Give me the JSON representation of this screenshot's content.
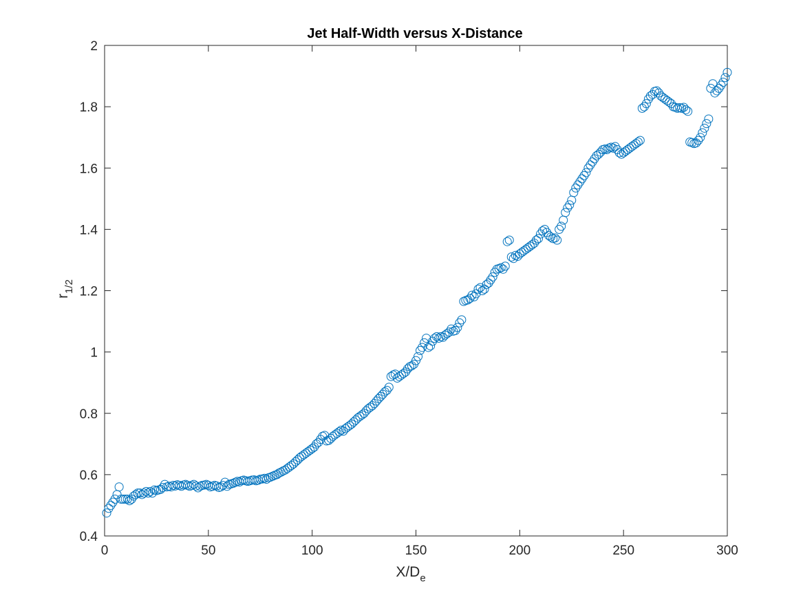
{
  "chart_data": {
    "type": "scatter",
    "title": "Jet Half-Width versus X-Distance",
    "xlabel": {
      "main": "X/D",
      "subscript": "e"
    },
    "ylabel": {
      "main": "r",
      "subscript": "1/2"
    },
    "xlim": [
      0,
      300
    ],
    "ylim": [
      0.4,
      2
    ],
    "x_ticks": [
      0,
      50,
      100,
      150,
      200,
      250,
      300
    ],
    "x_tick_labels": [
      "0",
      "50",
      "100",
      "150",
      "200",
      "250",
      "300"
    ],
    "y_ticks": [
      0.4,
      0.6,
      0.8,
      1.0,
      1.2,
      1.4,
      1.6,
      1.8,
      2.0
    ],
    "y_tick_labels": [
      "0.4",
      "0.6",
      "0.8",
      "1",
      "1.2",
      "1.4",
      "1.6",
      "1.8",
      "2"
    ],
    "grid": false,
    "marker": "circle",
    "marker_color": "#0072BD",
    "series": [
      {
        "points": [
          [
            1,
            0.475
          ],
          [
            2,
            0.49
          ],
          [
            3,
            0.5
          ],
          [
            4,
            0.51
          ],
          [
            5,
            0.52
          ],
          [
            6,
            0.535
          ],
          [
            7,
            0.56
          ],
          [
            8,
            0.52
          ],
          [
            9,
            0.52
          ],
          [
            10,
            0.52
          ],
          [
            11,
            0.52
          ],
          [
            12,
            0.515
          ],
          [
            13,
            0.52
          ],
          [
            14,
            0.53
          ],
          [
            15,
            0.535
          ],
          [
            16,
            0.54
          ],
          [
            17,
            0.54
          ],
          [
            18,
            0.535
          ],
          [
            19,
            0.54
          ],
          [
            20,
            0.545
          ],
          [
            21,
            0.54
          ],
          [
            22,
            0.545
          ],
          [
            23,
            0.54
          ],
          [
            24,
            0.55
          ],
          [
            25,
            0.548
          ],
          [
            26,
            0.55
          ],
          [
            27,
            0.552
          ],
          [
            28,
            0.558
          ],
          [
            29,
            0.568
          ],
          [
            30,
            0.56
          ],
          [
            31,
            0.562
          ],
          [
            32,
            0.56
          ],
          [
            33,
            0.565
          ],
          [
            34,
            0.563
          ],
          [
            35,
            0.567
          ],
          [
            36,
            0.565
          ],
          [
            37,
            0.562
          ],
          [
            38,
            0.566
          ],
          [
            39,
            0.568
          ],
          [
            40,
            0.565
          ],
          [
            41,
            0.562
          ],
          [
            42,
            0.565
          ],
          [
            43,
            0.568
          ],
          [
            44,
            0.563
          ],
          [
            45,
            0.557
          ],
          [
            46,
            0.562
          ],
          [
            47,
            0.565
          ],
          [
            48,
            0.566
          ],
          [
            49,
            0.568
          ],
          [
            50,
            0.565
          ],
          [
            51,
            0.56
          ],
          [
            52,
            0.562
          ],
          [
            53,
            0.565
          ],
          [
            54,
            0.563
          ],
          [
            55,
            0.558
          ],
          [
            56,
            0.56
          ],
          [
            57,
            0.565
          ],
          [
            58,
            0.575
          ],
          [
            59,
            0.562
          ],
          [
            60,
            0.568
          ],
          [
            61,
            0.57
          ],
          [
            62,
            0.572
          ],
          [
            63,
            0.575
          ],
          [
            64,
            0.578
          ],
          [
            65,
            0.576
          ],
          [
            66,
            0.58
          ],
          [
            67,
            0.582
          ],
          [
            68,
            0.58
          ],
          [
            69,
            0.578
          ],
          [
            70,
            0.58
          ],
          [
            71,
            0.582
          ],
          [
            72,
            0.583
          ],
          [
            73,
            0.58
          ],
          [
            74,
            0.582
          ],
          [
            75,
            0.585
          ],
          [
            76,
            0.586
          ],
          [
            77,
            0.588
          ],
          [
            78,
            0.585
          ],
          [
            79,
            0.59
          ],
          [
            80,
            0.592
          ],
          [
            81,
            0.595
          ],
          [
            82,
            0.598
          ],
          [
            83,
            0.6
          ],
          [
            84,
            0.605
          ],
          [
            85,
            0.608
          ],
          [
            86,
            0.612
          ],
          [
            87,
            0.615
          ],
          [
            88,
            0.62
          ],
          [
            89,
            0.625
          ],
          [
            90,
            0.63
          ],
          [
            91,
            0.635
          ],
          [
            92,
            0.642
          ],
          [
            93,
            0.648
          ],
          [
            94,
            0.655
          ],
          [
            95,
            0.66
          ],
          [
            96,
            0.665
          ],
          [
            97,
            0.67
          ],
          [
            98,
            0.675
          ],
          [
            99,
            0.68
          ],
          [
            100,
            0.685
          ],
          [
            101,
            0.69
          ],
          [
            102,
            0.7
          ],
          [
            103,
            0.705
          ],
          [
            104,
            0.715
          ],
          [
            105,
            0.725
          ],
          [
            106,
            0.728
          ],
          [
            107,
            0.71
          ],
          [
            108,
            0.712
          ],
          [
            109,
            0.718
          ],
          [
            110,
            0.725
          ],
          [
            111,
            0.73
          ],
          [
            112,
            0.735
          ],
          [
            113,
            0.74
          ],
          [
            114,
            0.745
          ],
          [
            115,
            0.742
          ],
          [
            116,
            0.75
          ],
          [
            117,
            0.755
          ],
          [
            118,
            0.76
          ],
          [
            119,
            0.765
          ],
          [
            120,
            0.772
          ],
          [
            121,
            0.778
          ],
          [
            122,
            0.785
          ],
          [
            123,
            0.79
          ],
          [
            124,
            0.795
          ],
          [
            125,
            0.8
          ],
          [
            126,
            0.808
          ],
          [
            127,
            0.815
          ],
          [
            128,
            0.82
          ],
          [
            129,
            0.825
          ],
          [
            130,
            0.832
          ],
          [
            131,
            0.84
          ],
          [
            132,
            0.848
          ],
          [
            133,
            0.855
          ],
          [
            134,
            0.862
          ],
          [
            135,
            0.87
          ],
          [
            136,
            0.875
          ],
          [
            137,
            0.885
          ],
          [
            138,
            0.92
          ],
          [
            139,
            0.925
          ],
          [
            140,
            0.928
          ],
          [
            141,
            0.915
          ],
          [
            142,
            0.92
          ],
          [
            143,
            0.925
          ],
          [
            144,
            0.93
          ],
          [
            145,
            0.935
          ],
          [
            146,
            0.945
          ],
          [
            147,
            0.952
          ],
          [
            148,
            0.955
          ],
          [
            149,
            0.96
          ],
          [
            150,
            0.972
          ],
          [
            151,
            0.985
          ],
          [
            152,
            1.005
          ],
          [
            153,
            1.015
          ],
          [
            154,
            1.03
          ],
          [
            155,
            1.045
          ],
          [
            156,
            1.015
          ],
          [
            157,
            1.02
          ],
          [
            158,
            1.035
          ],
          [
            159,
            1.045
          ],
          [
            160,
            1.05
          ],
          [
            161,
            1.045
          ],
          [
            162,
            1.05
          ],
          [
            163,
            1.048
          ],
          [
            164,
            1.055
          ],
          [
            165,
            1.06
          ],
          [
            166,
            1.065
          ],
          [
            167,
            1.075
          ],
          [
            168,
            1.068
          ],
          [
            169,
            1.07
          ],
          [
            170,
            1.08
          ],
          [
            171,
            1.095
          ],
          [
            172,
            1.105
          ],
          [
            173,
            1.165
          ],
          [
            174,
            1.168
          ],
          [
            175,
            1.17
          ],
          [
            176,
            1.175
          ],
          [
            177,
            1.185
          ],
          [
            178,
            1.18
          ],
          [
            179,
            1.19
          ],
          [
            180,
            1.205
          ],
          [
            181,
            1.21
          ],
          [
            182,
            1.2
          ],
          [
            183,
            1.205
          ],
          [
            184,
            1.22
          ],
          [
            185,
            1.225
          ],
          [
            186,
            1.235
          ],
          [
            187,
            1.245
          ],
          [
            188,
            1.26
          ],
          [
            189,
            1.27
          ],
          [
            190,
            1.272
          ],
          [
            191,
            1.275
          ],
          [
            192,
            1.27
          ],
          [
            193,
            1.28
          ],
          [
            194,
            1.36
          ],
          [
            195,
            1.365
          ],
          [
            196,
            1.31
          ],
          [
            197,
            1.305
          ],
          [
            198,
            1.315
          ],
          [
            199,
            1.312
          ],
          [
            200,
            1.32
          ],
          [
            201,
            1.325
          ],
          [
            202,
            1.33
          ],
          [
            203,
            1.335
          ],
          [
            204,
            1.34
          ],
          [
            205,
            1.345
          ],
          [
            206,
            1.35
          ],
          [
            207,
            1.355
          ],
          [
            208,
            1.365
          ],
          [
            209,
            1.37
          ],
          [
            210,
            1.385
          ],
          [
            211,
            1.395
          ],
          [
            212,
            1.4
          ],
          [
            213,
            1.39
          ],
          [
            214,
            1.38
          ],
          [
            215,
            1.375
          ],
          [
            216,
            1.37
          ],
          [
            217,
            1.372
          ],
          [
            218,
            1.365
          ],
          [
            219,
            1.4
          ],
          [
            220,
            1.41
          ],
          [
            221,
            1.43
          ],
          [
            222,
            1.455
          ],
          [
            223,
            1.47
          ],
          [
            224,
            1.48
          ],
          [
            225,
            1.495
          ],
          [
            226,
            1.52
          ],
          [
            227,
            1.535
          ],
          [
            228,
            1.545
          ],
          [
            229,
            1.555
          ],
          [
            230,
            1.565
          ],
          [
            231,
            1.575
          ],
          [
            232,
            1.585
          ],
          [
            233,
            1.6
          ],
          [
            234,
            1.61
          ],
          [
            235,
            1.62
          ],
          [
            236,
            1.63
          ],
          [
            237,
            1.64
          ],
          [
            238,
            1.645
          ],
          [
            239,
            1.652
          ],
          [
            240,
            1.66
          ],
          [
            241,
            1.662
          ],
          [
            242,
            1.66
          ],
          [
            243,
            1.665
          ],
          [
            244,
            1.668
          ],
          [
            245,
            1.665
          ],
          [
            246,
            1.67
          ],
          [
            247,
            1.66
          ],
          [
            248,
            1.65
          ],
          [
            249,
            1.645
          ],
          [
            250,
            1.65
          ],
          [
            251,
            1.655
          ],
          [
            252,
            1.66
          ],
          [
            253,
            1.665
          ],
          [
            254,
            1.67
          ],
          [
            255,
            1.675
          ],
          [
            256,
            1.68
          ],
          [
            257,
            1.685
          ],
          [
            258,
            1.69
          ],
          [
            259,
            1.795
          ],
          [
            260,
            1.8
          ],
          [
            261,
            1.81
          ],
          [
            262,
            1.825
          ],
          [
            263,
            1.835
          ],
          [
            264,
            1.84
          ],
          [
            265,
            1.85
          ],
          [
            266,
            1.852
          ],
          [
            267,
            1.845
          ],
          [
            268,
            1.835
          ],
          [
            269,
            1.83
          ],
          [
            270,
            1.825
          ],
          [
            271,
            1.82
          ],
          [
            272,
            1.815
          ],
          [
            273,
            1.81
          ],
          [
            274,
            1.8
          ],
          [
            275,
            1.798
          ],
          [
            276,
            1.795
          ],
          [
            277,
            1.797
          ],
          [
            278,
            1.795
          ],
          [
            279,
            1.798
          ],
          [
            280,
            1.79
          ],
          [
            281,
            1.785
          ],
          [
            282,
            1.685
          ],
          [
            283,
            1.683
          ],
          [
            284,
            1.68
          ],
          [
            285,
            1.682
          ],
          [
            286,
            1.69
          ],
          [
            287,
            1.7
          ],
          [
            288,
            1.715
          ],
          [
            289,
            1.73
          ],
          [
            290,
            1.745
          ],
          [
            291,
            1.76
          ],
          [
            292,
            1.86
          ],
          [
            293,
            1.875
          ],
          [
            294,
            1.845
          ],
          [
            295,
            1.852
          ],
          [
            296,
            1.86
          ],
          [
            297,
            1.87
          ],
          [
            298,
            1.88
          ],
          [
            299,
            1.895
          ],
          [
            300,
            1.912
          ]
        ]
      }
    ]
  }
}
